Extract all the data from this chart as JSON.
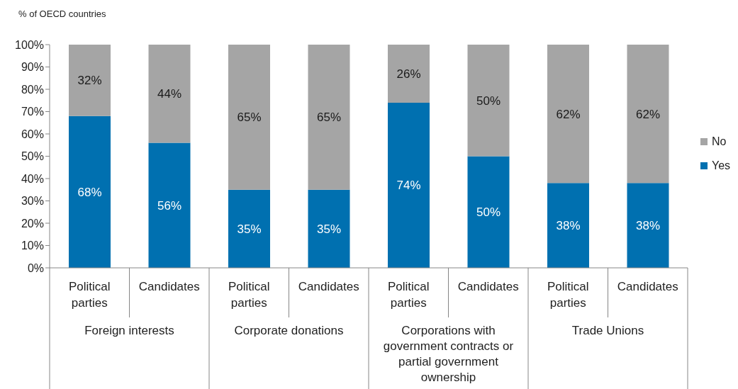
{
  "chart_data": {
    "type": "bar",
    "stacked": true,
    "ylabel": "% of OECD countries",
    "categories": [
      "Political parties",
      "Candidates",
      "Political parties",
      "Candidates",
      "Political parties",
      "Candidates",
      "Political parties",
      "Candidates"
    ],
    "annotations": [
      "Foreign interests",
      "Corporate donations",
      "Corporations with government contracts or partial government ownership",
      "Trade Unions"
    ],
    "series": [
      {
        "name": "Yes",
        "color": "#0070b0",
        "values": [
          68,
          56,
          35,
          35,
          74,
          50,
          38,
          38
        ],
        "value_labels": [
          "68%",
          "56%",
          "35%",
          "35%",
          "74%",
          "50%",
          "38%",
          "38%"
        ]
      },
      {
        "name": "No",
        "color": "#a5a5a5",
        "values": [
          32,
          44,
          65,
          65,
          26,
          50,
          62,
          62
        ],
        "value_labels": [
          "32%",
          "44%",
          "65%",
          "65%",
          "26%",
          "50%",
          "62%",
          "62%"
        ]
      }
    ],
    "ylim": [
      0,
      100
    ],
    "yticks": [
      {
        "value": 0,
        "label": "0%"
      },
      {
        "value": 10,
        "label": "10%"
      },
      {
        "value": 20,
        "label": "20%"
      },
      {
        "value": 30,
        "label": "30%"
      },
      {
        "value": 40,
        "label": "40%"
      },
      {
        "value": 50,
        "label": "50%"
      },
      {
        "value": 60,
        "label": "60%"
      },
      {
        "value": 70,
        "label": "70%"
      },
      {
        "value": 80,
        "label": "80%"
      },
      {
        "value": 90,
        "label": "90%"
      },
      {
        "value": 100,
        "label": "100%"
      }
    ],
    "legend": "right"
  }
}
